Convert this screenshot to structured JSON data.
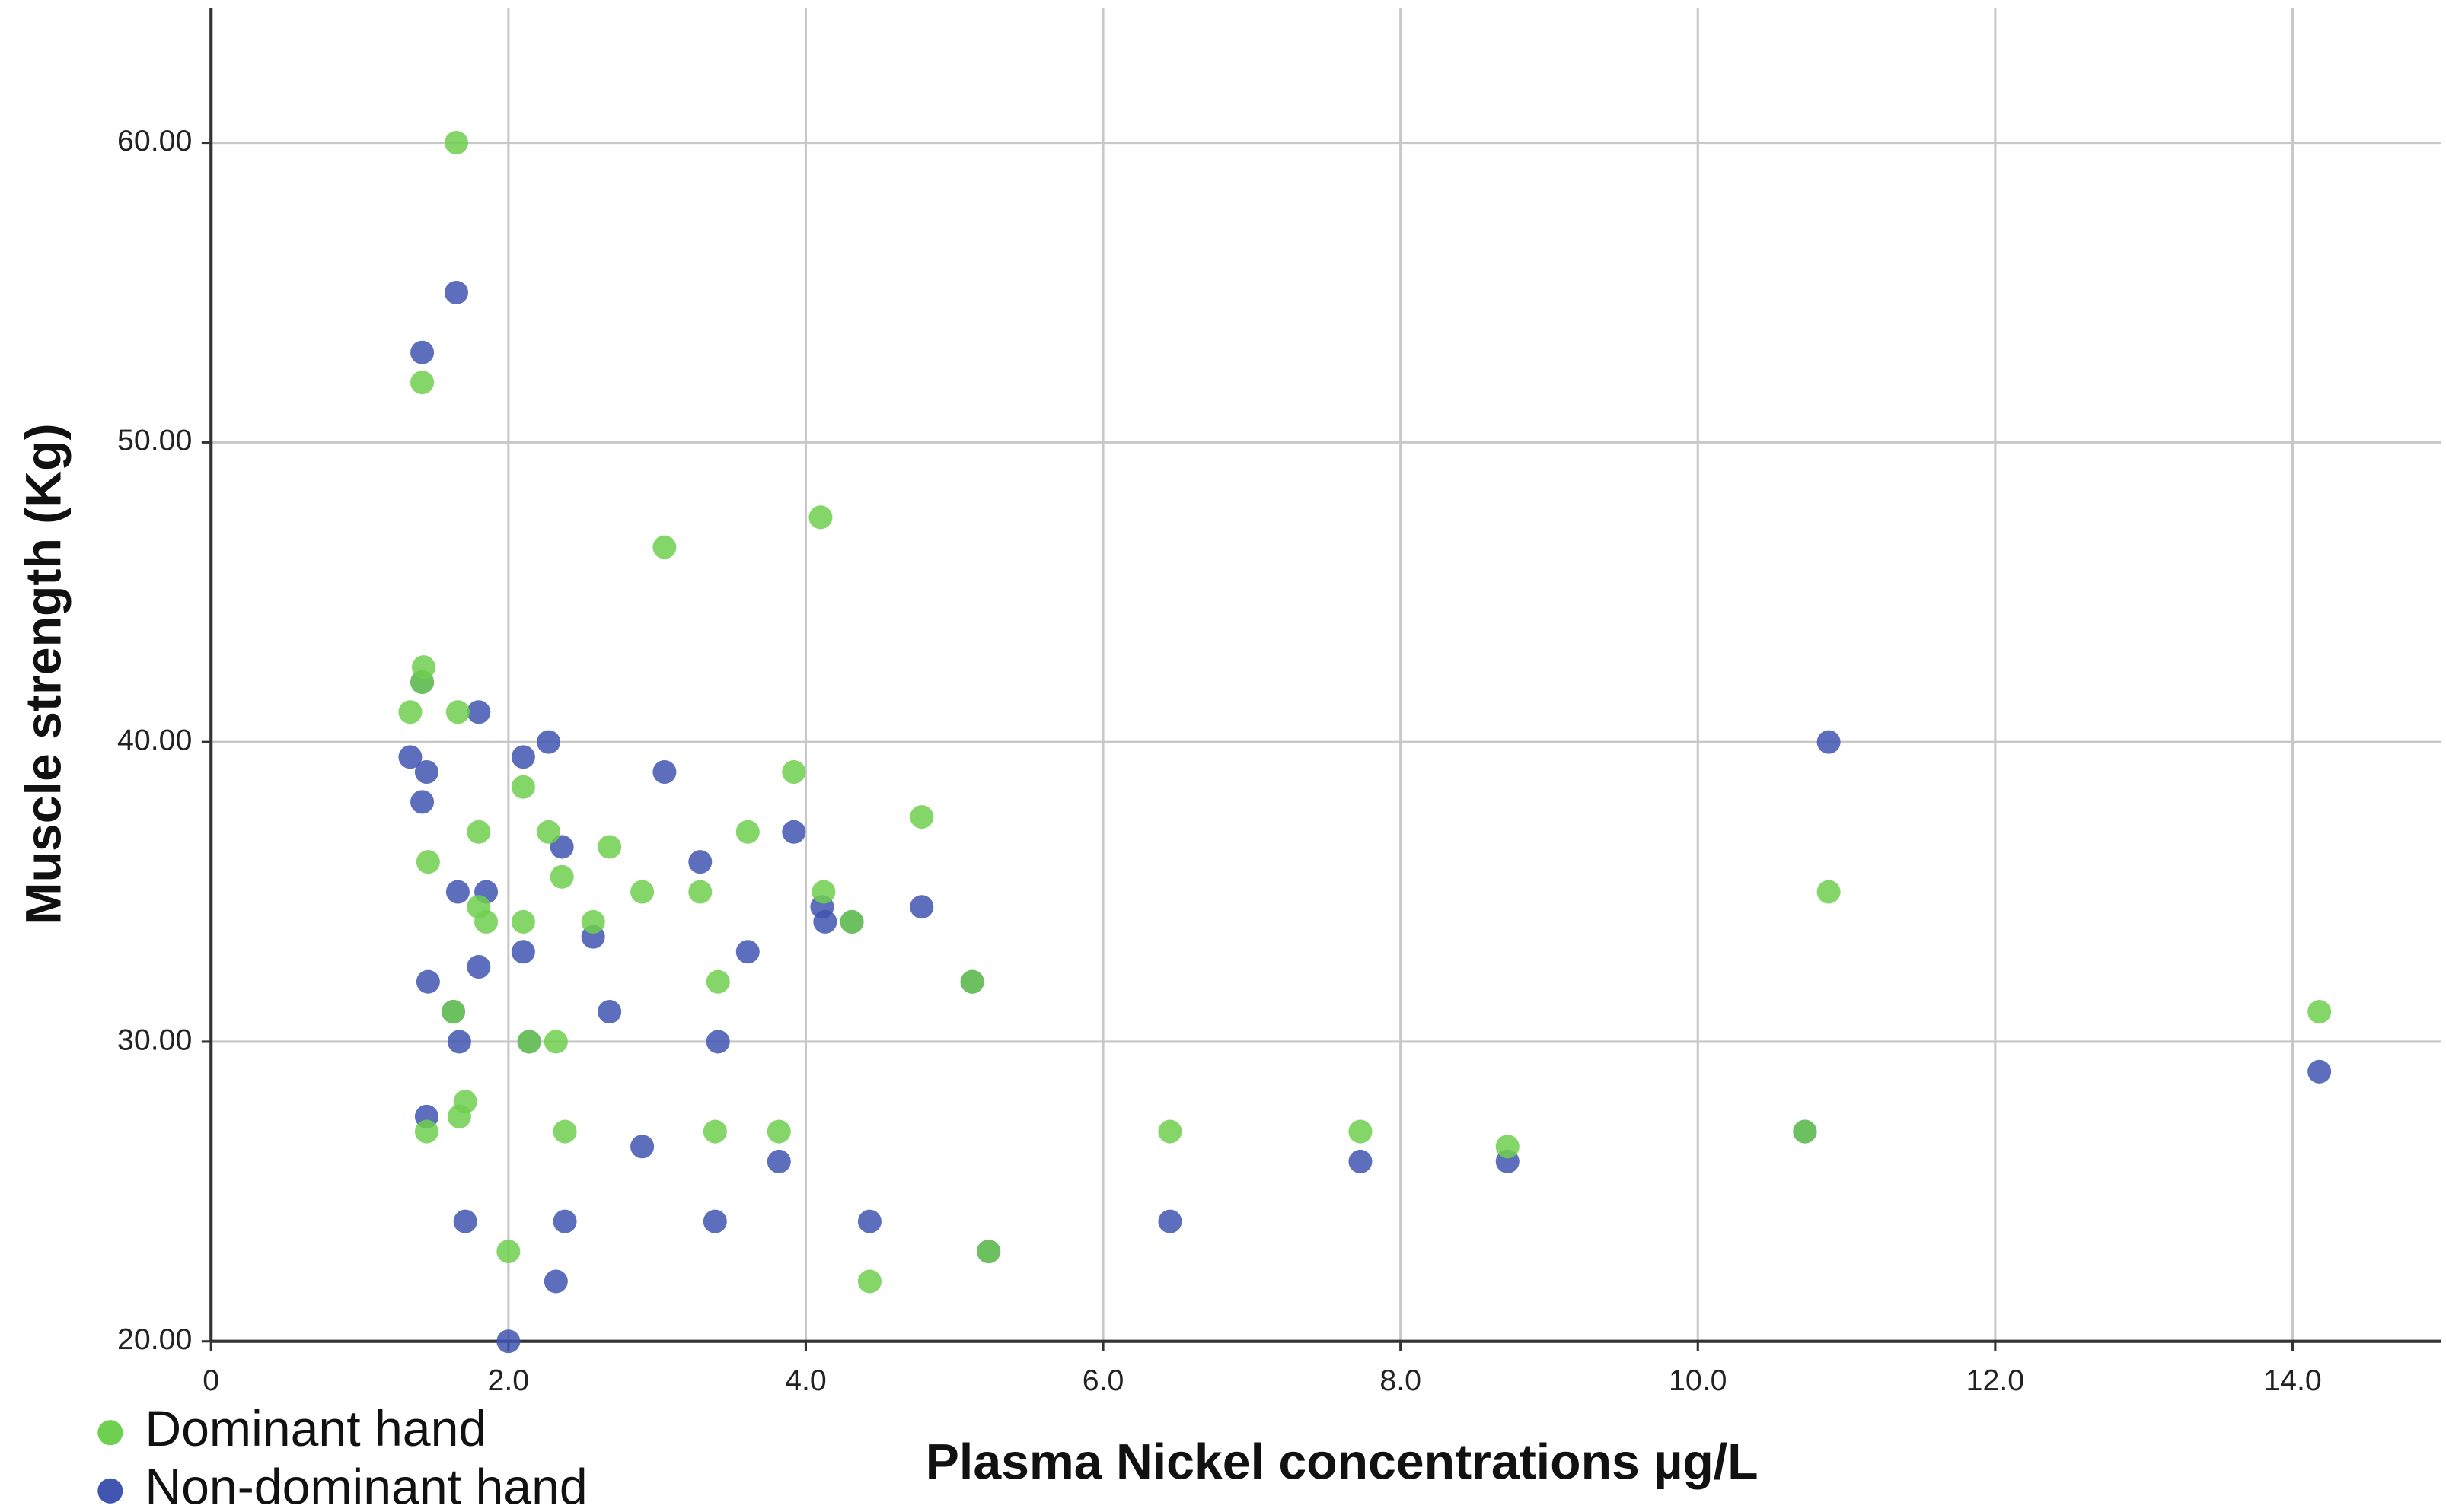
{
  "chart_data": {
    "type": "scatter",
    "xlabel": "Plasma Nickel concentrations µg/L",
    "ylabel": "Muscle strength (Kg)",
    "xlim": [
      0,
      15
    ],
    "ylim": [
      20,
      64.5
    ],
    "xticks": [
      0,
      {
        "value": 2,
        "label": "2.0"
      },
      {
        "value": 4,
        "label": "4.0"
      },
      {
        "value": 6,
        "label": "6.0"
      },
      {
        "value": 8,
        "label": "8.0"
      },
      {
        "value": 10,
        "label": "10.0"
      },
      {
        "value": 12,
        "label": "12.0"
      },
      {
        "value": 14,
        "label": "14.0"
      }
    ],
    "yticks": [
      {
        "value": 20,
        "label": "20.00"
      },
      {
        "value": 30,
        "label": "30.00"
      },
      {
        "value": 40,
        "label": "40.00"
      },
      {
        "value": 50,
        "label": "50.00"
      },
      {
        "value": 60,
        "label": "60.00"
      }
    ],
    "grid": true,
    "legend": "bottom-left",
    "series": [
      {
        "name": "Non-dominant hand",
        "color": "#3f55b0",
        "x": [
          1.65,
          1.42,
          1.42,
          1.8,
          1.34,
          1.45,
          1.42,
          2.27,
          2.1,
          3.05,
          2.36,
          3.29,
          3.92,
          1.66,
          1.85,
          2.57,
          2.1,
          1.8,
          1.46,
          3.61,
          4.11,
          4.13,
          4.31,
          4.78,
          5.12,
          1.63,
          2.68,
          1.67,
          2.14,
          3.41,
          1.45,
          2.9,
          3.82,
          7.73,
          8.72,
          10.72,
          10.88,
          14.18,
          1.71,
          2.38,
          3.39,
          4.43,
          6.45,
          5.23,
          2.32,
          2.0
        ],
        "values": [
          55,
          53,
          42,
          41,
          39.5,
          39,
          38,
          40,
          39.5,
          39,
          36.5,
          36,
          37,
          35,
          35,
          33.5,
          33,
          32.5,
          32,
          33,
          34.5,
          34,
          34,
          34.5,
          32,
          31,
          31,
          30,
          30,
          30,
          27.5,
          26.5,
          26,
          26,
          26,
          27,
          40,
          29,
          24,
          24,
          24,
          24,
          24,
          23,
          22,
          20
        ]
      },
      {
        "name": "Dominant hand",
        "color": "#6fcf4f",
        "x": [
          1.65,
          1.42,
          1.43,
          1.42,
          1.34,
          1.66,
          1.46,
          1.8,
          2.1,
          2.27,
          2.36,
          2.68,
          1.8,
          1.85,
          2.1,
          2.57,
          2.9,
          3.29,
          3.05,
          4.1,
          3.61,
          3.92,
          4.12,
          4.31,
          4.78,
          5.12,
          3.41,
          1.63,
          2.14,
          2.32,
          1.71,
          1.67,
          1.45,
          2.38,
          3.39,
          3.82,
          6.45,
          7.73,
          8.72,
          10.72,
          10.88,
          14.18,
          2.0,
          5.23,
          4.43
        ],
        "values": [
          60,
          52,
          42.5,
          42,
          41,
          41,
          36,
          37,
          38.5,
          37,
          35.5,
          36.5,
          34.5,
          34,
          34,
          34,
          35,
          35,
          46.5,
          47.5,
          37,
          39,
          35,
          34,
          37.5,
          32,
          32,
          31,
          30,
          30,
          28,
          27.5,
          27,
          27,
          27,
          27,
          27,
          27,
          26.5,
          27,
          35,
          31,
          23,
          23,
          22
        ]
      }
    ]
  }
}
